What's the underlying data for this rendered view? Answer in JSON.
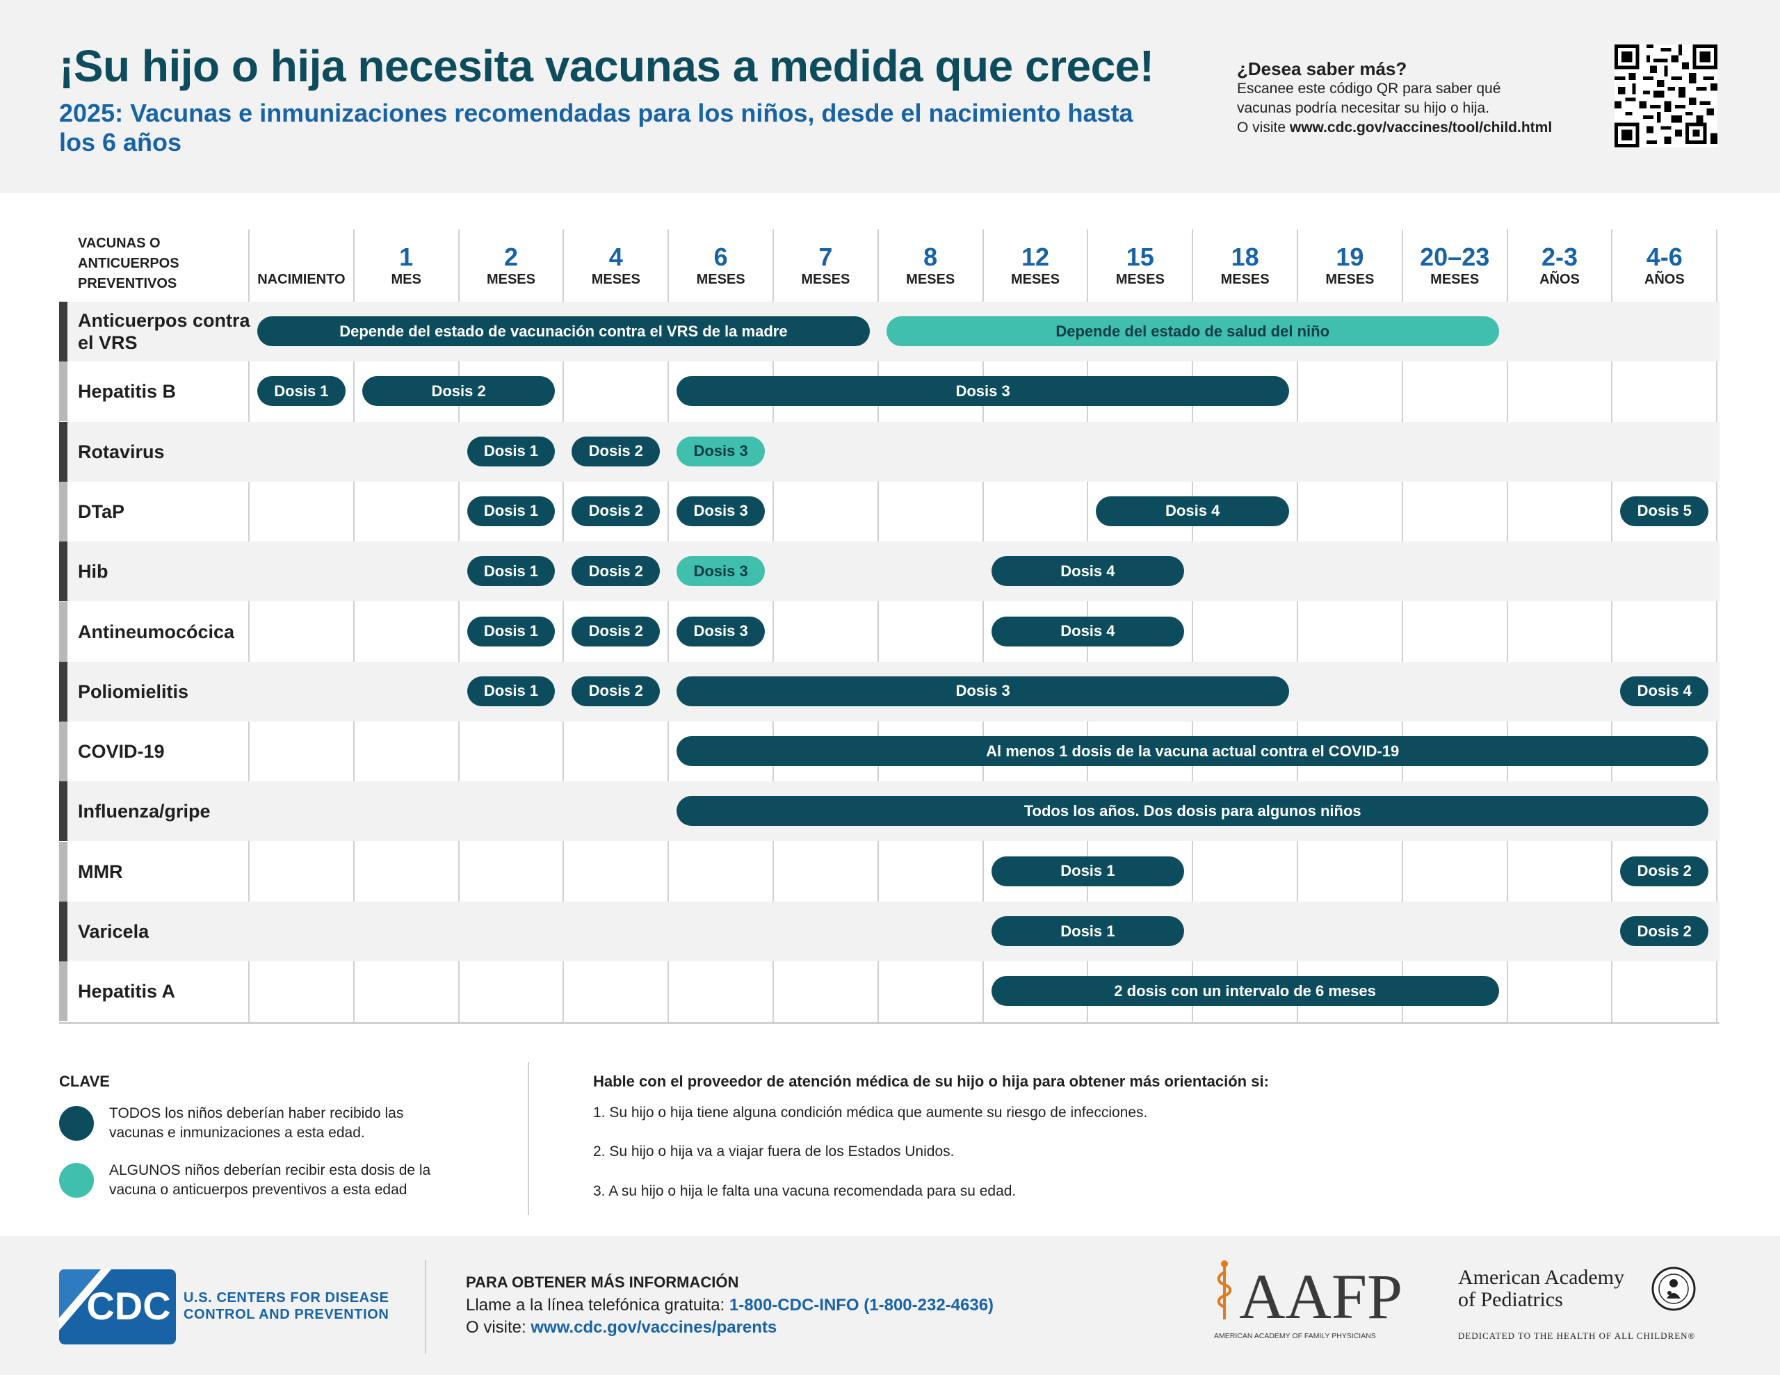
{
  "header": {
    "title": "¡Su hijo o hija necesita vacunas a medida que crece!",
    "subtitle": "2025: Vacunas e inmunizaciones recomendadas para los niños, desde el nacimiento hasta los 6 años",
    "learn_more_heading": "¿Desea saber más?",
    "learn_more_line1": "Escanee este código QR para saber qué",
    "learn_more_line2": "vacunas podría necesitar su hijo o hija.",
    "learn_more_visit": "O visite ",
    "learn_more_url": "www.cdc.gov/vaccines/tool/child.html"
  },
  "table": {
    "header_label_line1": "VACUNAS O",
    "header_label_line2": "ANTICUERPOS",
    "header_label_line3": "PREVENTIVOS",
    "ages": [
      {
        "num": "",
        "unit": "NACIMIENTO"
      },
      {
        "num": "1",
        "unit": "MES"
      },
      {
        "num": "2",
        "unit": "MESES"
      },
      {
        "num": "4",
        "unit": "MESES"
      },
      {
        "num": "6",
        "unit": "MESES"
      },
      {
        "num": "7",
        "unit": "MESES"
      },
      {
        "num": "8",
        "unit": "MESES"
      },
      {
        "num": "12",
        "unit": "MESES"
      },
      {
        "num": "15",
        "unit": "MESES"
      },
      {
        "num": "18",
        "unit": "MESES"
      },
      {
        "num": "19",
        "unit": "MESES"
      },
      {
        "num": "20–23",
        "unit": "MESES"
      },
      {
        "num": "2-3",
        "unit": "AÑOS"
      },
      {
        "num": "4-6",
        "unit": "AÑOS"
      }
    ],
    "rows": [
      {
        "name": "Anticuerpos contra el VRS",
        "pills": [
          {
            "label": "Depende del estado de vacunación contra el VRS de la madre",
            "type": "all",
            "from": 0,
            "to": 5
          },
          {
            "label": "Depende del estado de salud del niño",
            "type": "some",
            "from": 6,
            "to": 11
          }
        ]
      },
      {
        "name": "Hepatitis B",
        "pills": [
          {
            "label": "Dosis 1",
            "type": "all",
            "from": 0,
            "to": 0
          },
          {
            "label": "Dosis 2",
            "type": "all",
            "from": 1,
            "to": 2
          },
          {
            "label": "Dosis 3",
            "type": "all",
            "from": 4,
            "to": 9
          }
        ]
      },
      {
        "name": "Rotavirus",
        "pills": [
          {
            "label": "Dosis 1",
            "type": "all",
            "from": 2,
            "to": 2
          },
          {
            "label": "Dosis 2",
            "type": "all",
            "from": 3,
            "to": 3
          },
          {
            "label": "Dosis 3",
            "type": "some",
            "from": 4,
            "to": 4
          }
        ]
      },
      {
        "name": "DTaP",
        "pills": [
          {
            "label": "Dosis 1",
            "type": "all",
            "from": 2,
            "to": 2
          },
          {
            "label": "Dosis 2",
            "type": "all",
            "from": 3,
            "to": 3
          },
          {
            "label": "Dosis 3",
            "type": "all",
            "from": 4,
            "to": 4
          },
          {
            "label": "Dosis 4",
            "type": "all",
            "from": 8,
            "to": 9
          },
          {
            "label": "Dosis 5",
            "type": "all",
            "from": 13,
            "to": 13
          }
        ]
      },
      {
        "name": "Hib",
        "pills": [
          {
            "label": "Dosis 1",
            "type": "all",
            "from": 2,
            "to": 2
          },
          {
            "label": "Dosis 2",
            "type": "all",
            "from": 3,
            "to": 3
          },
          {
            "label": "Dosis 3",
            "type": "some",
            "from": 4,
            "to": 4
          },
          {
            "label": "Dosis 4",
            "type": "all",
            "from": 7,
            "to": 8
          }
        ]
      },
      {
        "name": "Antineumocócica",
        "pills": [
          {
            "label": "Dosis 1",
            "type": "all",
            "from": 2,
            "to": 2
          },
          {
            "label": "Dosis 2",
            "type": "all",
            "from": 3,
            "to": 3
          },
          {
            "label": "Dosis 3",
            "type": "all",
            "from": 4,
            "to": 4
          },
          {
            "label": "Dosis 4",
            "type": "all",
            "from": 7,
            "to": 8
          }
        ]
      },
      {
        "name": "Poliomielitis",
        "pills": [
          {
            "label": "Dosis 1",
            "type": "all",
            "from": 2,
            "to": 2
          },
          {
            "label": "Dosis 2",
            "type": "all",
            "from": 3,
            "to": 3
          },
          {
            "label": "Dosis 3",
            "type": "all",
            "from": 4,
            "to": 9
          },
          {
            "label": "Dosis 4",
            "type": "all",
            "from": 13,
            "to": 13
          }
        ]
      },
      {
        "name": "COVID-19",
        "pills": [
          {
            "label": "Al menos 1 dosis de la vacuna actual contra el COVID-19",
            "type": "all",
            "from": 4,
            "to": 13
          }
        ]
      },
      {
        "name": "Influenza/gripe",
        "pills": [
          {
            "label": "Todos los años. Dos dosis para algunos niños",
            "type": "all",
            "from": 4,
            "to": 13
          }
        ]
      },
      {
        "name": "MMR",
        "pills": [
          {
            "label": "Dosis 1",
            "type": "all",
            "from": 7,
            "to": 8
          },
          {
            "label": "Dosis 2",
            "type": "all",
            "from": 13,
            "to": 13
          }
        ]
      },
      {
        "name": "Varicela",
        "pills": [
          {
            "label": "Dosis 1",
            "type": "all",
            "from": 7,
            "to": 8
          },
          {
            "label": "Dosis 2",
            "type": "all",
            "from": 13,
            "to": 13
          }
        ]
      },
      {
        "name": "Hepatitis A",
        "pills": [
          {
            "label": "2 dosis con un intervalo de 6 meses",
            "type": "all",
            "from": 7,
            "to": 11
          }
        ]
      }
    ]
  },
  "key": {
    "title": "CLAVE",
    "all_text_line1": "TODOS los niños deberían haber recibido las",
    "all_text_line2": "vacunas e inmunizaciones a esta edad.",
    "some_text_line1": "ALGUNOS niños deberían recibir esta dosis de la",
    "some_text_line2": "vacuna o anticuerpos preventivos a esta edad"
  },
  "advice": {
    "title": "Hable con el proveedor de atención médica de su hijo o hija para obtener más orientación si:",
    "items": [
      "1. Su hijo o hija tiene alguna condición médica que aumente su riesgo de infecciones.",
      "2. Su hijo o hija va a viajar fuera de los Estados Unidos.",
      "3. A su hijo o hija le falta una vacuna recomendada para su edad."
    ]
  },
  "footer": {
    "cdc_logo_text": "CDC",
    "cdc_name_line1": "U.S. CENTERS FOR DISEASE",
    "cdc_name_line2": "CONTROL AND PREVENTION",
    "more_info_title": "PARA OBTENER MÁS INFORMACIÓN",
    "phone_prefix": "Llame a la línea telefónica gratuita: ",
    "phone": "1-800-CDC-INFO (1-800-232-4636)",
    "visit_prefix": "O visite: ",
    "visit_url": "www.cdc.gov/vaccines/parents",
    "aafp_logo_text": "AAFP",
    "aafp_tagline": "AMERICAN ACADEMY OF FAMILY PHYSICIANS",
    "aap_name_line1": "American Academy",
    "aap_name_line2": "of Pediatrics",
    "aap_tagline": "DEDICATED TO THE HEALTH OF ALL CHILDREN®"
  },
  "colors": {
    "dark_teal": "#0d4c5c",
    "light_teal": "#3fbfac",
    "blue": "#1763a6",
    "gray_band": "#f2f2f2"
  },
  "icons": [
    "qr-code-icon",
    "cdc-logo-icon",
    "aafp-logo-icon",
    "aap-seal-icon"
  ]
}
